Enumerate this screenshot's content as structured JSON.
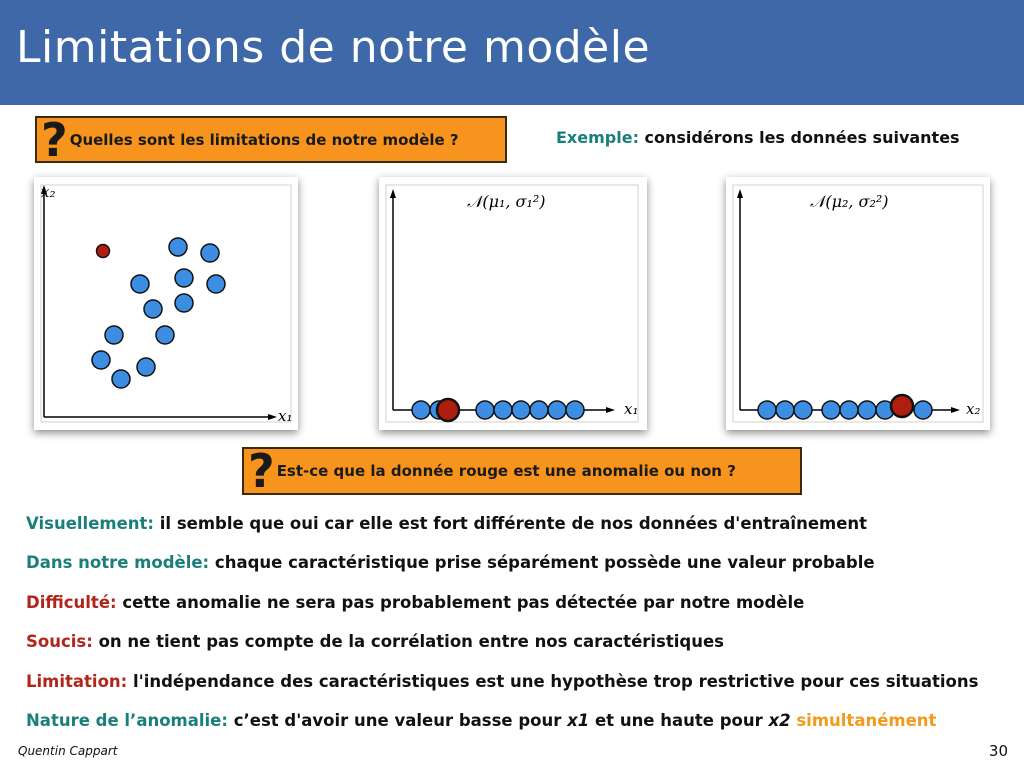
{
  "title": "Limitations de notre modèle",
  "question1": "Quelles sont les limitations de notre modèle ?",
  "question_mark": "?",
  "example": {
    "label": "Exemple:",
    "text": " considérons les données suivantes"
  },
  "panels": {
    "scatter": {
      "xlabel": "x₁",
      "ylabel": "x₂"
    },
    "dist1": {
      "title": "𝒩(μ₁, σ₁²)",
      "xlabel": "x₁"
    },
    "dist2": {
      "title": "𝒩(μ₂, σ₂²)",
      "xlabel": "x₂"
    }
  },
  "question2": "Est-ce que la donnée rouge est une anomalie ou non ?",
  "lines": [
    {
      "label": "Visuellement:",
      "text": " il semble que oui car elle est fort différente de nos données d'entraînement",
      "color": "teal"
    },
    {
      "label": "Dans notre modèle:",
      "text": " chaque caractéristique prise séparément possède une valeur probable",
      "color": "teal"
    },
    {
      "label": "Difficulté:",
      "text": " cette anomalie ne sera pas probablement pas détectée par notre modèle",
      "color": "red"
    },
    {
      "label": "Soucis:",
      "text": " on ne tient pas compte de la corrélation entre nos caractéristiques",
      "color": "red"
    },
    {
      "label": "Limitation:",
      "text": " l'indépendance des caractéristiques est une hypothèse trop restrictive pour ces situations",
      "color": "red"
    }
  ],
  "nature": {
    "label": "Nature de l’anomalie:",
    "part1": " c’est d'avoir une valeur basse pour ",
    "x1": "x1",
    "part2": " et une haute pour ",
    "x2": "x2",
    "simul": " simultanément"
  },
  "footer": {
    "author": "Quentin Cappart",
    "page": "30"
  },
  "colors": {
    "header": "#3e68a8",
    "point_blue": "#3d8ee3",
    "point_red": "#b01e10",
    "box_orange": "#f7941d",
    "teal": "#1a7f7a",
    "red": "#b2251c",
    "orange": "#f29a1b"
  }
}
